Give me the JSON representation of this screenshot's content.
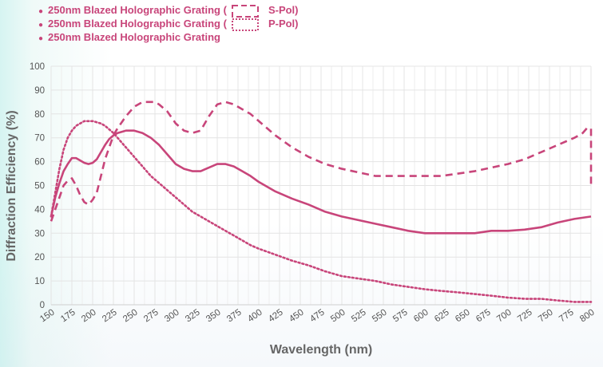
{
  "chart_data": {
    "type": "line",
    "title": "",
    "xlabel": "Wavelength (nm)",
    "ylabel": "Diffraction Efficiency (%)",
    "xlim": [
      150,
      800
    ],
    "ylim": [
      0,
      100
    ],
    "x_ticks": [
      150,
      175,
      200,
      225,
      250,
      275,
      300,
      325,
      350,
      375,
      400,
      425,
      450,
      475,
      500,
      525,
      550,
      575,
      600,
      625,
      650,
      675,
      700,
      725,
      750,
      775,
      800
    ],
    "y_ticks": [
      0,
      10,
      20,
      30,
      40,
      50,
      60,
      70,
      80,
      90,
      100
    ],
    "grid": true,
    "legend_position": "top-left",
    "series": [
      {
        "name": "250nm Blazed Holographic Grating (",
        "suffix": "S-Pol)",
        "style": "dashed",
        "color": "#c8457a",
        "x": [
          150,
          155,
          160,
          165,
          170,
          175,
          180,
          185,
          190,
          195,
          200,
          205,
          210,
          215,
          220,
          225,
          230,
          240,
          250,
          260,
          270,
          275,
          280,
          290,
          300,
          310,
          320,
          330,
          340,
          350,
          360,
          370,
          380,
          390,
          400,
          420,
          440,
          460,
          480,
          500,
          520,
          540,
          560,
          580,
          600,
          620,
          640,
          660,
          680,
          700,
          720,
          740,
          760,
          780,
          790,
          795,
          800,
          800
        ],
        "values": [
          35,
          40,
          45,
          50,
          52,
          53,
          50,
          46,
          43,
          42,
          44,
          47,
          54,
          61,
          66,
          71,
          74,
          79,
          83,
          85,
          85,
          85,
          84,
          81,
          76,
          73,
          72,
          73,
          79,
          84,
          85,
          84,
          82,
          80,
          77,
          71,
          66,
          62,
          59,
          57,
          55.5,
          54,
          54,
          54,
          54,
          54,
          55,
          56,
          57.5,
          59,
          61,
          64,
          67,
          70,
          72,
          74,
          74,
          50
        ]
      },
      {
        "name": "250nm Blazed Holographic Grating (",
        "suffix": "P-Pol)",
        "style": "dotted",
        "color": "#c8457a",
        "x": [
          150,
          155,
          160,
          165,
          170,
          175,
          180,
          185,
          190,
          195,
          200,
          205,
          210,
          215,
          220,
          225,
          230,
          240,
          250,
          260,
          270,
          280,
          290,
          300,
          310,
          320,
          330,
          340,
          350,
          360,
          370,
          380,
          390,
          400,
          420,
          440,
          460,
          480,
          500,
          520,
          540,
          560,
          580,
          600,
          620,
          640,
          660,
          680,
          700,
          720,
          740,
          760,
          780,
          800
        ],
        "values": [
          37,
          47,
          57,
          65,
          70,
          73,
          75,
          76,
          77,
          77,
          77,
          76.5,
          76,
          75,
          73.5,
          72,
          70,
          66,
          62,
          58,
          54,
          51,
          48,
          45,
          42,
          39,
          37,
          35,
          33,
          31,
          29,
          27,
          25,
          23.5,
          21,
          18.5,
          16.5,
          14,
          12,
          11,
          10,
          8.5,
          7.5,
          6.5,
          5.8,
          5.2,
          4.5,
          3.8,
          3,
          2.5,
          2.5,
          1.8,
          1.2,
          1.2
        ]
      },
      {
        "name": "250nm Blazed Holographic Grating",
        "suffix": "",
        "style": "solid",
        "color": "#c8457a",
        "x": [
          150,
          155,
          160,
          165,
          170,
          175,
          180,
          185,
          190,
          195,
          200,
          205,
          210,
          215,
          220,
          225,
          230,
          240,
          250,
          260,
          270,
          280,
          290,
          300,
          310,
          320,
          330,
          340,
          350,
          360,
          370,
          380,
          390,
          400,
          420,
          440,
          460,
          480,
          500,
          520,
          540,
          560,
          580,
          600,
          620,
          640,
          660,
          680,
          700,
          720,
          740,
          760,
          780,
          800
        ],
        "values": [
          37,
          45,
          51,
          56,
          59,
          61.5,
          61.5,
          60.5,
          59.5,
          59,
          59.5,
          61,
          64,
          67,
          69.5,
          71,
          72,
          73,
          73,
          72,
          70,
          67,
          63,
          59,
          57,
          56,
          56,
          57.5,
          59,
          59,
          58,
          56,
          54,
          51.5,
          47.5,
          44.5,
          42,
          39,
          37,
          35.5,
          34,
          32.5,
          31,
          30,
          30,
          30,
          30,
          31,
          31,
          31.5,
          32.5,
          34.5,
          36,
          37
        ]
      }
    ]
  }
}
